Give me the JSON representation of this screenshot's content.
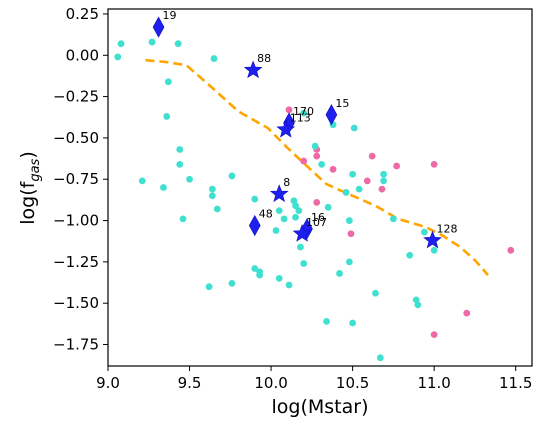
{
  "chart_data": {
    "type": "scatter",
    "xlabel": "log(Mstar)",
    "ylabel_main": "log(f",
    "ylabel_sub": "gas",
    "ylabel_close": ")",
    "xlim": [
      9.0,
      11.6
    ],
    "ylim": [
      -1.88,
      0.28
    ],
    "x_ticks": [
      {
        "v": 9.0,
        "label": "9.0"
      },
      {
        "v": 9.5,
        "label": "9.5"
      },
      {
        "v": 10.0,
        "label": "10.0"
      },
      {
        "v": 10.5,
        "label": "10.5"
      },
      {
        "v": 11.0,
        "label": "11.0"
      },
      {
        "v": 11.5,
        "label": "11.5"
      }
    ],
    "y_ticks": [
      {
        "v": 0.25,
        "label": "0.25"
      },
      {
        "v": 0.0,
        "label": "0.00"
      },
      {
        "v": -0.25,
        "label": "−0.25"
      },
      {
        "v": -0.5,
        "label": "−0.50"
      },
      {
        "v": -0.75,
        "label": "−0.75"
      },
      {
        "v": -1.0,
        "label": "−1.00"
      },
      {
        "v": -1.25,
        "label": "−1.25"
      },
      {
        "v": -1.5,
        "label": "−1.50"
      },
      {
        "v": -1.75,
        "label": "−1.75"
      }
    ],
    "colors": {
      "cyan": "#40e0d0",
      "pink": "#ee6aa7",
      "trend": "#ffa500",
      "marker": "#1f1fee"
    },
    "cyan_points": [
      [
        9.06,
        -0.01
      ],
      [
        9.08,
        0.07
      ],
      [
        9.21,
        -0.76
      ],
      [
        9.27,
        0.08
      ],
      [
        9.34,
        -0.8
      ],
      [
        9.36,
        -0.37
      ],
      [
        9.37,
        -0.16
      ],
      [
        9.43,
        0.07
      ],
      [
        9.44,
        -0.57
      ],
      [
        9.44,
        -0.66
      ],
      [
        9.46,
        -0.99
      ],
      [
        9.5,
        -0.75
      ],
      [
        9.62,
        -1.4
      ],
      [
        9.64,
        -0.81
      ],
      [
        9.64,
        -0.85
      ],
      [
        9.65,
        -0.02
      ],
      [
        9.67,
        -0.93
      ],
      [
        9.76,
        -0.73
      ],
      [
        9.76,
        -1.38
      ],
      [
        9.9,
        -1.29
      ],
      [
        9.9,
        -0.87
      ],
      [
        9.93,
        -1.31
      ],
      [
        9.93,
        -1.33
      ],
      [
        10.03,
        -1.06
      ],
      [
        10.05,
        -0.94
      ],
      [
        10.05,
        -1.35
      ],
      [
        10.08,
        -0.99
      ],
      [
        10.11,
        -1.39
      ],
      [
        10.14,
        -0.88
      ],
      [
        10.15,
        -0.91
      ],
      [
        10.15,
        -0.98
      ],
      [
        10.17,
        -0.94
      ],
      [
        10.18,
        -1.16
      ],
      [
        10.2,
        -1.26
      ],
      [
        10.2,
        -0.35
      ],
      [
        10.27,
        -0.55
      ],
      [
        10.31,
        -0.66
      ],
      [
        10.34,
        -1.61
      ],
      [
        10.35,
        -0.92
      ],
      [
        10.38,
        -0.42
      ],
      [
        10.42,
        -1.32
      ],
      [
        10.46,
        -0.83
      ],
      [
        10.48,
        -1.0
      ],
      [
        10.48,
        -1.25
      ],
      [
        10.5,
        -0.72
      ],
      [
        10.5,
        -1.62
      ],
      [
        10.51,
        -0.44
      ],
      [
        10.54,
        -0.81
      ],
      [
        10.64,
        -1.44
      ],
      [
        10.67,
        -1.83
      ],
      [
        10.69,
        -0.72
      ],
      [
        10.69,
        -0.76
      ],
      [
        10.75,
        -0.99
      ],
      [
        10.85,
        -1.21
      ],
      [
        10.89,
        -1.48
      ],
      [
        10.9,
        -1.51
      ],
      [
        10.94,
        -1.07
      ],
      [
        10.99,
        -1.11
      ],
      [
        11.0,
        -1.18
      ]
    ],
    "pink_points": [
      [
        10.11,
        -0.33
      ],
      [
        10.2,
        -0.64
      ],
      [
        10.28,
        -0.57
      ],
      [
        10.28,
        -0.61
      ],
      [
        10.28,
        -0.89
      ],
      [
        10.38,
        -0.69
      ],
      [
        10.49,
        -1.08
      ],
      [
        10.59,
        -0.76
      ],
      [
        10.62,
        -0.61
      ],
      [
        10.68,
        -0.81
      ],
      [
        10.77,
        -0.67
      ],
      [
        11.0,
        -0.66
      ],
      [
        11.0,
        -1.69
      ],
      [
        11.2,
        -1.56
      ],
      [
        11.47,
        -1.18
      ]
    ],
    "trend_line": [
      [
        9.23,
        -0.03
      ],
      [
        9.35,
        -0.04
      ],
      [
        9.48,
        -0.06
      ],
      [
        9.62,
        -0.18
      ],
      [
        9.8,
        -0.34
      ],
      [
        9.98,
        -0.44
      ],
      [
        10.1,
        -0.56
      ],
      [
        10.23,
        -0.68
      ],
      [
        10.34,
        -0.78
      ],
      [
        10.5,
        -0.85
      ],
      [
        10.64,
        -0.91
      ],
      [
        10.78,
        -0.99
      ],
      [
        10.95,
        -1.04
      ],
      [
        11.05,
        -1.09
      ],
      [
        11.16,
        -1.16
      ],
      [
        11.25,
        -1.24
      ],
      [
        11.33,
        -1.33
      ]
    ],
    "diamonds": [
      {
        "x": 9.31,
        "y": 0.17,
        "label": "19"
      },
      {
        "x": 10.11,
        "y": -0.41,
        "label": "170"
      },
      {
        "x": 10.37,
        "y": -0.36,
        "label": "15"
      },
      {
        "x": 9.9,
        "y": -1.03,
        "label": "48"
      },
      {
        "x": 10.22,
        "y": -1.05,
        "label": "16"
      }
    ],
    "stars": [
      {
        "x": 9.89,
        "y": -0.09,
        "label": "88"
      },
      {
        "x": 10.09,
        "y": -0.45,
        "label": "113"
      },
      {
        "x": 10.05,
        "y": -0.84,
        "label": "8"
      },
      {
        "x": 10.19,
        "y": -1.08,
        "label": "107"
      },
      {
        "x": 10.99,
        "y": -1.12,
        "label": "128"
      }
    ]
  }
}
